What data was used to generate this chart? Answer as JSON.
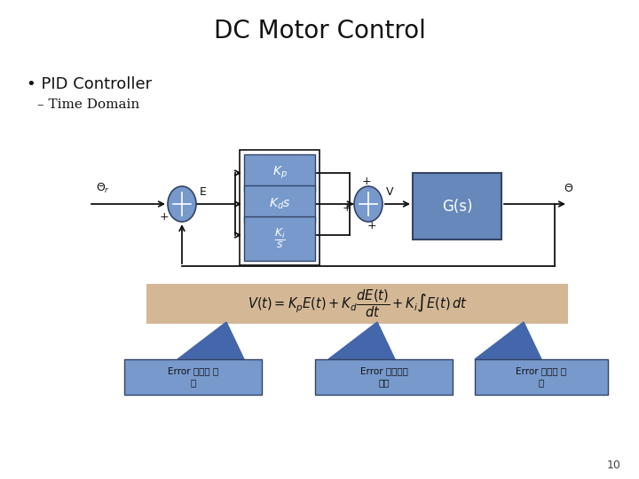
{
  "title": "DC Motor Control",
  "bullet1": "PID Controller",
  "bullet2": "Time Domain",
  "bg_color": "#ffffff",
  "title_fontsize": 20,
  "bullet1_fontsize": 13,
  "bullet2_fontsize": 11,
  "block_color": "#7799cc",
  "gs_color": "#6688bb",
  "formula_bg": "#d4b896",
  "arrow_color": "#111111",
  "label_color": "#111111",
  "annot_box_color": "#7799cc",
  "annot_arrow_color": "#4466aa",
  "annot_box_edge": "#334466",
  "page_number": "10",
  "annot1_line1": "Error 크기에 비",
  "annot1_line2": "레",
  "annot2_line1": "Error 기울기에",
  "annot2_line2": "비례",
  "annot3_line1": "Error 면적에 비",
  "annot3_line2": "레"
}
